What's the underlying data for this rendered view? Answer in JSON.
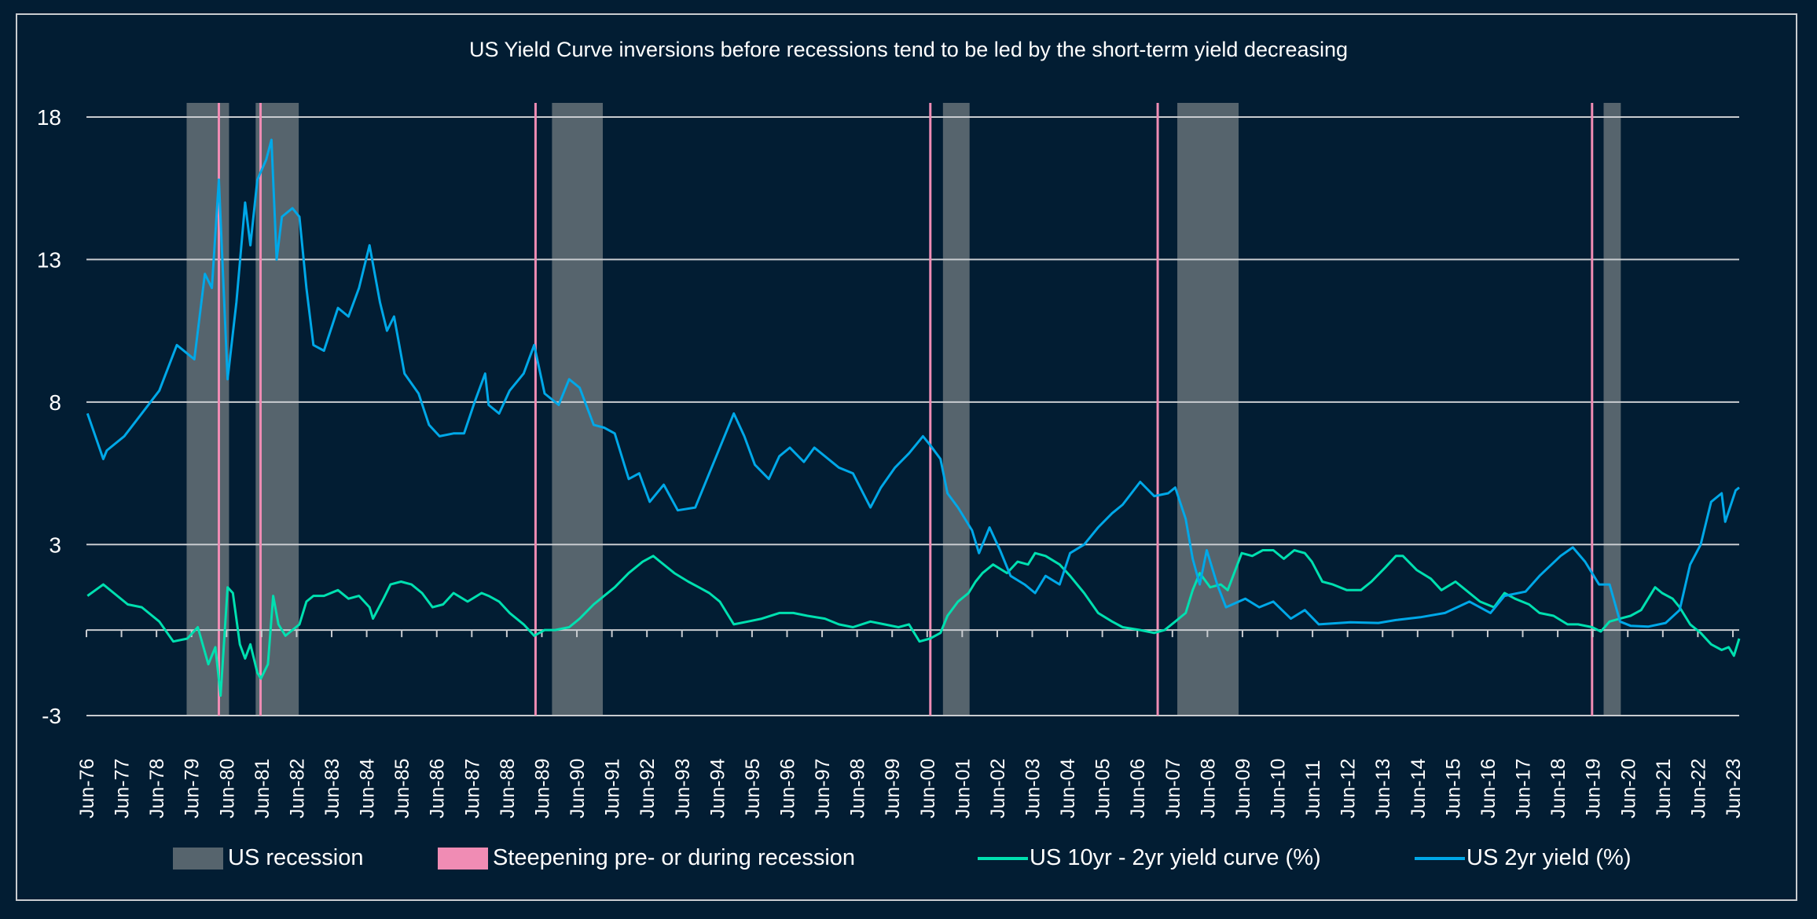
{
  "chart_data": {
    "type": "line",
    "title": "US Yield Curve inversions before recessions tend to be led by the short-term yield decreasing",
    "xlabel": "",
    "ylabel": "",
    "ylim": [
      -3,
      18
    ],
    "yticks": [
      18,
      13,
      8,
      3,
      -3
    ],
    "xlim": [
      1976.42,
      2023.6
    ],
    "x_tick_labels": [
      "Jun-76",
      "Jun-77",
      "Jun-78",
      "Jun-79",
      "Jun-80",
      "Jun-81",
      "Jun-82",
      "Jun-83",
      "Jun-84",
      "Jun-85",
      "Jun-86",
      "Jun-87",
      "Jun-88",
      "Jun-89",
      "Jun-90",
      "Jun-91",
      "Jun-92",
      "Jun-93",
      "Jun-94",
      "Jun-95",
      "Jun-96",
      "Jun-97",
      "Jun-98",
      "Jun-99",
      "Jun-00",
      "Jun-01",
      "Jun-02",
      "Jun-03",
      "Jun-04",
      "Jun-05",
      "Jun-06",
      "Jun-07",
      "Jun-08",
      "Jun-09",
      "Jun-10",
      "Jun-11",
      "Jun-12",
      "Jun-13",
      "Jun-14",
      "Jun-15",
      "Jun-16",
      "Jun-17",
      "Jun-18",
      "Jun-19",
      "Jun-20",
      "Jun-21",
      "Jun-22",
      "Jun-23"
    ],
    "grid": true,
    "legend_position": "bottom",
    "colors": {
      "background": "#021d33",
      "grid": "#c9ccd0",
      "recession": "#56646d",
      "steepening": "#f08cb4",
      "spread": "#00e0b0",
      "yield2y": "#00a8e8"
    },
    "recessions": [
      [
        1979.28,
        1980.49
      ],
      [
        1981.25,
        1982.48
      ],
      [
        1989.71,
        1991.16
      ],
      [
        2000.87,
        2001.63
      ],
      [
        2007.56,
        2009.31
      ],
      [
        2019.73,
        2020.22
      ]
    ],
    "steepening_markers": [
      1980.2,
      1981.39,
      1989.24,
      2000.51,
      2007.0,
      2019.4
    ],
    "legend": [
      "US recession",
      "Steepening pre- or during recession",
      "US 10yr - 2yr yield curve (%)",
      "US 2yr yield (%)"
    ],
    "series": [
      {
        "name": "US 10yr - 2yr yield curve (%)",
        "x": [
          1976.45,
          1976.9,
          1977.2,
          1977.6,
          1978.0,
          1978.5,
          1978.9,
          1979.3,
          1979.6,
          1979.9,
          1980.1,
          1980.25,
          1980.45,
          1980.6,
          1980.8,
          1980.95,
          1981.1,
          1981.3,
          1981.4,
          1981.6,
          1981.75,
          1981.9,
          1982.1,
          1982.3,
          1982.5,
          1982.7,
          1982.9,
          1983.2,
          1983.6,
          1983.9,
          1984.2,
          1984.5,
          1984.6,
          1984.9,
          1985.1,
          1985.4,
          1985.7,
          1986.0,
          1986.3,
          1986.6,
          1986.9,
          1987.3,
          1987.7,
          1987.9,
          1988.2,
          1988.5,
          1988.9,
          1989.2,
          1989.5,
          1989.8,
          1990.2,
          1990.5,
          1990.9,
          1991.2,
          1991.5,
          1991.9,
          1992.3,
          1992.6,
          1992.8,
          1993.2,
          1993.6,
          1993.9,
          1994.2,
          1994.5,
          1994.9,
          1995.3,
          1995.7,
          1996.2,
          1996.6,
          1997.0,
          1997.5,
          1997.9,
          1998.3,
          1998.8,
          1999.2,
          1999.6,
          1999.9,
          2000.2,
          2000.5,
          2000.8,
          2001.0,
          2001.3,
          2001.6,
          2001.8,
          2002.0,
          2002.3,
          2002.7,
          2003.0,
          2003.3,
          2003.5,
          2003.8,
          2004.2,
          2004.5,
          2004.9,
          2005.3,
          2005.7,
          2006.0,
          2006.5,
          2006.9,
          2007.2,
          2007.5,
          2007.8,
          2008.0,
          2008.2,
          2008.5,
          2008.8,
          2009.0,
          2009.4,
          2009.7,
          2010.0,
          2010.3,
          2010.6,
          2010.9,
          2011.2,
          2011.4,
          2011.7,
          2012.0,
          2012.4,
          2012.8,
          2013.1,
          2013.5,
          2013.8,
          2014.0,
          2014.4,
          2014.8,
          2015.1,
          2015.5,
          2015.8,
          2016.2,
          2016.6,
          2016.9,
          2017.2,
          2017.6,
          2017.9,
          2018.3,
          2018.7,
          2019.0,
          2019.4,
          2019.65,
          2019.9,
          2020.2,
          2020.5,
          2020.8,
          2021.2,
          2021.4,
          2021.7,
          2021.9,
          2022.2,
          2022.5,
          2022.8,
          2023.1,
          2023.3,
          2023.45,
          2023.6
        ],
        "y": [
          1.2,
          1.6,
          1.3,
          0.9,
          0.8,
          0.3,
          -0.4,
          -0.3,
          0.1,
          -1.2,
          -0.6,
          -2.3,
          1.5,
          1.3,
          -0.5,
          -1.0,
          -0.5,
          -1.5,
          -1.7,
          -1.2,
          1.2,
          0.2,
          -0.2,
          0.0,
          0.2,
          1.0,
          1.2,
          1.2,
          1.4,
          1.1,
          1.2,
          0.8,
          0.4,
          1.1,
          1.6,
          1.7,
          1.6,
          1.3,
          0.8,
          0.9,
          1.3,
          1.0,
          1.3,
          1.2,
          1.0,
          0.6,
          0.2,
          -0.2,
          0.0,
          0.0,
          0.1,
          0.4,
          0.9,
          1.2,
          1.5,
          2.0,
          2.4,
          2.6,
          2.4,
          2.0,
          1.7,
          1.5,
          1.3,
          1.0,
          0.2,
          0.3,
          0.4,
          0.6,
          0.6,
          0.5,
          0.4,
          0.2,
          0.1,
          0.3,
          0.2,
          0.1,
          0.2,
          -0.4,
          -0.3,
          -0.1,
          0.5,
          1.0,
          1.3,
          1.7,
          2.0,
          2.3,
          2.0,
          2.4,
          2.3,
          2.7,
          2.6,
          2.3,
          1.9,
          1.3,
          0.6,
          0.3,
          0.1,
          0.0,
          -0.1,
          0.0,
          0.3,
          0.6,
          1.4,
          2.0,
          1.5,
          1.6,
          1.4,
          2.7,
          2.6,
          2.8,
          2.8,
          2.5,
          2.8,
          2.7,
          2.4,
          1.7,
          1.6,
          1.4,
          1.4,
          1.7,
          2.2,
          2.6,
          2.6,
          2.1,
          1.8,
          1.4,
          1.7,
          1.4,
          1.0,
          0.8,
          1.3,
          1.1,
          0.9,
          0.6,
          0.5,
          0.2,
          0.2,
          0.1,
          -0.05,
          0.3,
          0.4,
          0.5,
          0.7,
          1.5,
          1.3,
          1.1,
          0.8,
          0.2,
          -0.1,
          -0.5,
          -0.7,
          -0.6,
          -0.9,
          -0.3
        ]
      },
      {
        "name": "US 2yr yield (%)",
        "x": [
          1976.45,
          1976.9,
          1977.0,
          1977.5,
          1978.0,
          1978.5,
          1979.0,
          1979.5,
          1979.8,
          1980.0,
          1980.2,
          1980.45,
          1980.7,
          1980.95,
          1981.1,
          1981.3,
          1981.55,
          1981.7,
          1981.85,
          1982.0,
          1982.3,
          1982.5,
          1982.7,
          1982.9,
          1983.2,
          1983.6,
          1983.9,
          1984.2,
          1984.5,
          1984.8,
          1985.0,
          1985.2,
          1985.5,
          1985.9,
          1986.2,
          1986.5,
          1986.9,
          1987.2,
          1987.5,
          1987.8,
          1987.9,
          1988.2,
          1988.5,
          1988.9,
          1989.2,
          1989.5,
          1989.9,
          1990.2,
          1990.5,
          1990.9,
          1991.2,
          1991.5,
          1991.9,
          1992.2,
          1992.5,
          1992.9,
          1993.3,
          1993.8,
          1994.2,
          1994.5,
          1994.9,
          1995.2,
          1995.5,
          1995.9,
          1996.2,
          1996.5,
          1996.9,
          1997.2,
          1997.5,
          1997.9,
          1998.3,
          1998.8,
          1999.1,
          1999.5,
          1999.9,
          2000.3,
          2000.5,
          2000.8,
          2001.0,
          2001.3,
          2001.7,
          2001.9,
          2002.2,
          2002.5,
          2002.8,
          2003.2,
          2003.5,
          2003.8,
          2004.2,
          2004.5,
          2004.9,
          2005.3,
          2005.7,
          2006.0,
          2006.5,
          2006.9,
          2007.3,
          2007.5,
          2007.8,
          2008.0,
          2008.2,
          2008.4,
          2008.7,
          2008.95,
          2009.5,
          2009.9,
          2010.3,
          2010.8,
          2011.2,
          2011.6,
          2012.5,
          2013.3,
          2013.8,
          2014.5,
          2015.2,
          2015.9,
          2016.5,
          2016.9,
          2017.5,
          2017.9,
          2018.5,
          2018.85,
          2019.2,
          2019.6,
          2019.9,
          2020.2,
          2020.5,
          2021.0,
          2021.5,
          2021.9,
          2022.2,
          2022.5,
          2022.8,
          2023.1,
          2023.2,
          2023.5,
          2023.6
        ],
        "y": [
          7.6,
          6.0,
          6.3,
          6.8,
          7.6,
          8.4,
          10.0,
          9.5,
          12.5,
          12.0,
          15.8,
          8.8,
          11.5,
          15.0,
          13.5,
          15.8,
          16.5,
          17.2,
          13.0,
          14.5,
          14.8,
          14.5,
          12.0,
          10.0,
          9.8,
          11.3,
          11.0,
          12.0,
          13.5,
          11.5,
          10.5,
          11.0,
          9.0,
          8.3,
          7.2,
          6.8,
          6.9,
          6.9,
          8.0,
          9.0,
          7.9,
          7.6,
          8.4,
          9.0,
          10.0,
          8.3,
          7.9,
          8.8,
          8.5,
          7.2,
          7.1,
          6.9,
          5.3,
          5.5,
          4.5,
          5.1,
          4.2,
          4.3,
          5.5,
          6.4,
          7.6,
          6.8,
          5.8,
          5.3,
          6.1,
          6.4,
          5.9,
          6.4,
          6.1,
          5.7,
          5.5,
          4.3,
          5.0,
          5.7,
          6.2,
          6.8,
          6.5,
          6.0,
          4.8,
          4.3,
          3.5,
          2.7,
          3.6,
          2.8,
          1.9,
          1.6,
          1.3,
          1.9,
          1.6,
          2.7,
          3.0,
          3.6,
          4.1,
          4.4,
          5.2,
          4.7,
          4.8,
          5.0,
          3.9,
          2.5,
          1.6,
          2.8,
          1.6,
          0.8,
          1.1,
          0.8,
          1.0,
          0.4,
          0.7,
          0.2,
          0.27,
          0.25,
          0.35,
          0.45,
          0.6,
          1.0,
          0.6,
          1.2,
          1.35,
          1.9,
          2.6,
          2.9,
          2.4,
          1.6,
          1.6,
          0.3,
          0.15,
          0.12,
          0.25,
          0.7,
          2.3,
          3.0,
          4.5,
          4.8,
          3.8,
          4.9,
          5.0
        ]
      }
    ]
  }
}
